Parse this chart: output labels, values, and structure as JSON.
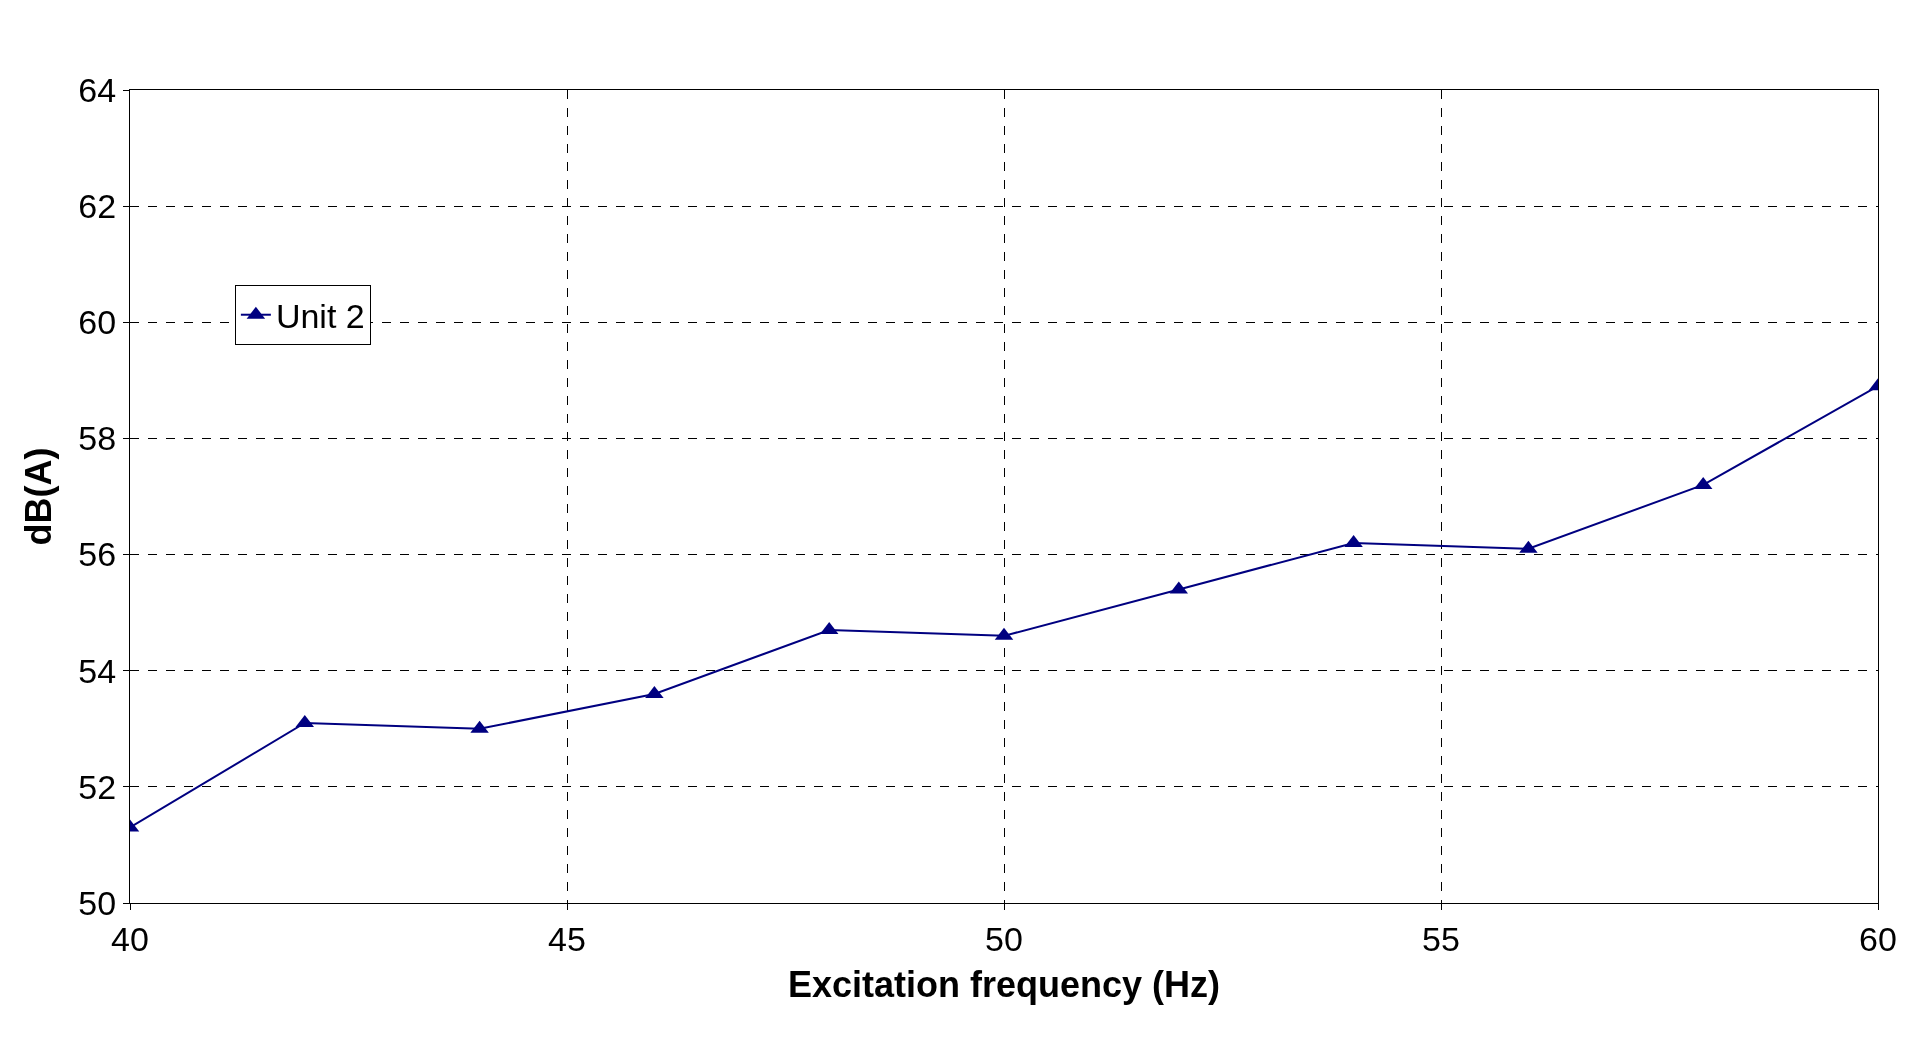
{
  "chart_data": {
    "type": "line",
    "xlabel": "Excitation frequency (Hz)",
    "ylabel": "dB(A)",
    "x": [
      40,
      42,
      44,
      46,
      48,
      50,
      52,
      54,
      56,
      58,
      60
    ],
    "series": [
      {
        "name": "Unit 2",
        "color": "#000080",
        "values": [
          51.3,
          53.1,
          53.0,
          53.6,
          54.7,
          54.6,
          55.4,
          56.2,
          56.1,
          57.2,
          58.9
        ]
      }
    ],
    "xlim": [
      40,
      60
    ],
    "xticks": [
      40,
      45,
      50,
      55,
      60
    ],
    "ylim": [
      50,
      64
    ],
    "yticks": [
      50,
      52,
      54,
      56,
      58,
      60,
      62,
      64
    ],
    "grid": true,
    "legend": "top left",
    "marker": "triangle",
    "line_style": "solid"
  }
}
